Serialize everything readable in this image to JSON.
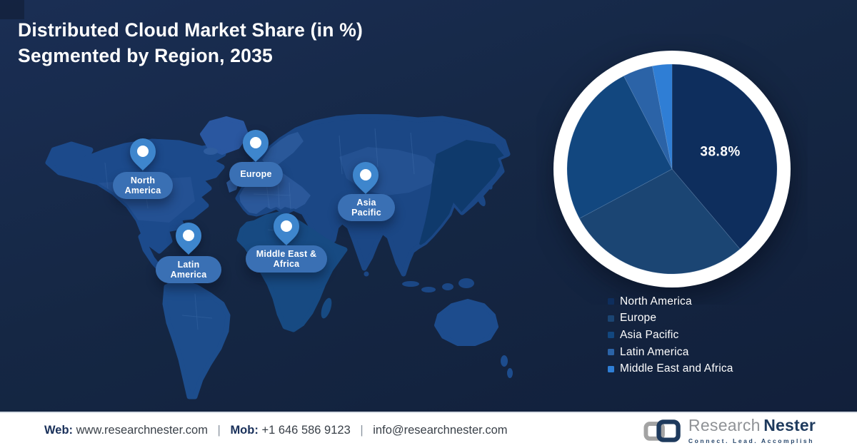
{
  "title": {
    "line1": "Distributed Cloud Market Share (in %)",
    "line2": "Segmented by Region, 2035"
  },
  "map": {
    "pins": [
      {
        "label": "North America"
      },
      {
        "label": "Europe"
      },
      {
        "label": "Asia Pacific"
      },
      {
        "label": "Latin America"
      },
      {
        "label": "Middle East & Africa"
      }
    ]
  },
  "chart_data": {
    "type": "pie",
    "title": "Distributed Cloud Market Share (in %) Segmented by Region, 2035",
    "unit": "%",
    "direction": "clockwise",
    "start_angle_deg": 0,
    "legend_position": "bottom-right",
    "labeled_value": "38.8%",
    "series": [
      {
        "name": "North America",
        "value": 38.8,
        "label": "38.8%",
        "color": "#0e2e5d"
      },
      {
        "name": "Europe",
        "value": 28.4,
        "color": "#1b4573"
      },
      {
        "name": "Asia Pacific",
        "value": 25.2,
        "color": "#12477f"
      },
      {
        "name": "Latin America",
        "value": 4.6,
        "color": "#2b63a7"
      },
      {
        "name": "Middle East and Africa",
        "value": 3.0,
        "color": "#2f7ed5"
      }
    ]
  },
  "footer": {
    "web_label": "Web:",
    "web_value": "www.researchnester.com",
    "mob_label": "Mob:",
    "mob_value": "+1 646 586 9123",
    "email": "info@researchnester.com",
    "separator": "|",
    "logo": {
      "research": "Research",
      "nester": "Nester",
      "tagline": "Connect. Lead. Accomplish"
    }
  },
  "colors": {
    "background": "#152744",
    "map_land": "#1b4785",
    "map_land_light": "#2e5c9e",
    "map_land_dark": "#0e3869",
    "pin": "#3e86cd",
    "pin_pill": "#3a70b4",
    "ring": "#ffffff"
  }
}
